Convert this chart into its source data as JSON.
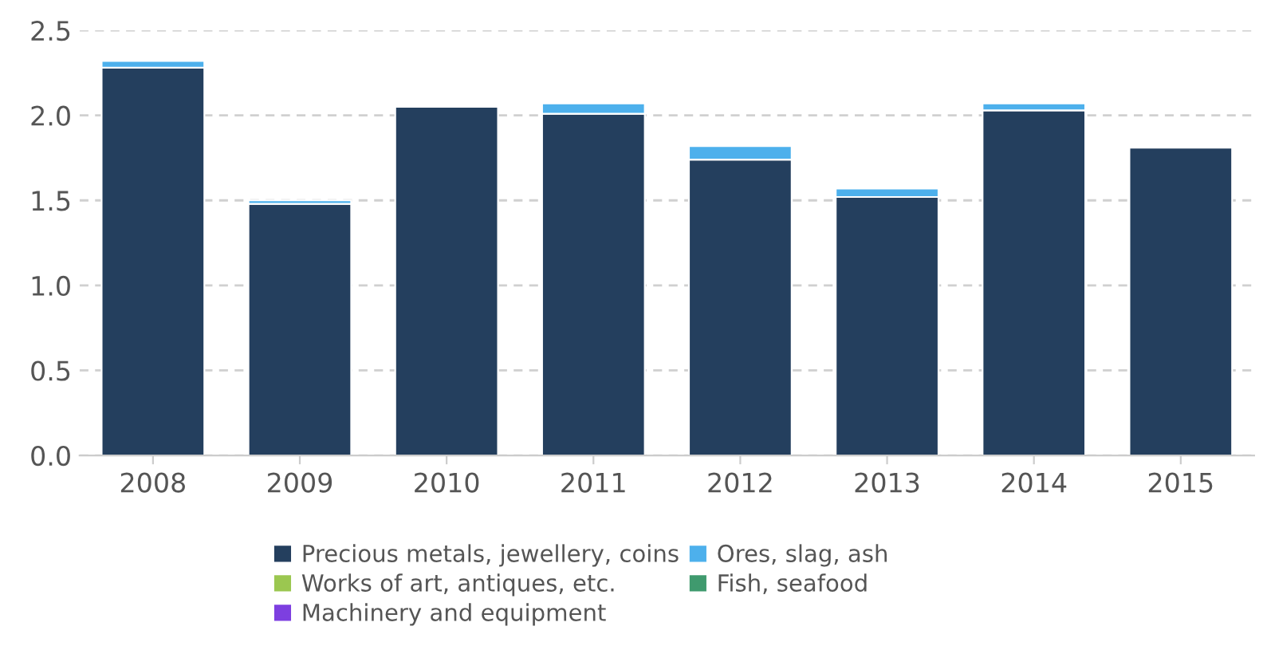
{
  "chart_data": {
    "type": "bar",
    "stacked": true,
    "categories": [
      "2008",
      "2009",
      "2010",
      "2011",
      "2012",
      "2013",
      "2014",
      "2015"
    ],
    "series": [
      {
        "name": "Precious metals, jewellery, coins",
        "color": "#243f5e",
        "values": [
          2.28,
          1.48,
          2.05,
          2.01,
          1.74,
          1.52,
          2.03,
          1.81
        ]
      },
      {
        "name": "Ores, slag, ash",
        "color": "#4db0ec",
        "values": [
          0.04,
          0.02,
          null,
          0.06,
          0.08,
          0.05,
          0.04,
          null
        ]
      },
      {
        "name": "Works of art, antiques, etc.",
        "color": "#9bc750",
        "values": [
          null,
          null,
          null,
          null,
          null,
          null,
          null,
          null
        ]
      },
      {
        "name": "Fish, seafood",
        "color": "#3f9a6e",
        "values": [
          null,
          null,
          null,
          null,
          null,
          null,
          null,
          null
        ]
      },
      {
        "name": "Machinery and equipment",
        "color": "#7d3fe0",
        "values": [
          null,
          null,
          null,
          null,
          null,
          null,
          null,
          null
        ]
      }
    ],
    "ylim": [
      0,
      2.5
    ],
    "yticks": [
      {
        "value": 0,
        "label": "0.0"
      },
      {
        "value": 0.5,
        "label": "0.5"
      },
      {
        "value": 1,
        "label": "1.0"
      },
      {
        "value": 1.5,
        "label": "1.5"
      },
      {
        "value": 2,
        "label": "2.0"
      },
      {
        "value": 2.5,
        "label": "2.5"
      }
    ],
    "grid": "y",
    "legend": "bottom"
  }
}
